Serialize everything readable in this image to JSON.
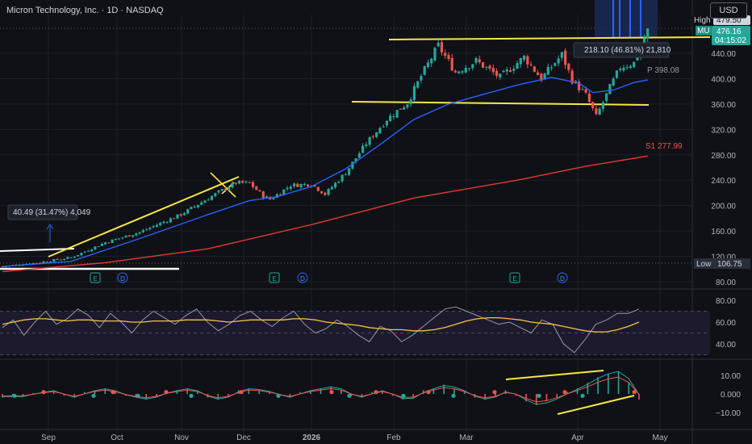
{
  "header": {
    "title": "Micron Technology, Inc. · 1D · NASDAQ",
    "currency": "USD"
  },
  "price_labels": {
    "high_tag": "High",
    "high_value": "479.50",
    "ticker": "MU",
    "last": "476.16",
    "countdown": "04:15:02",
    "low_tag": "Low",
    "low_value": "106.75",
    "ma_fast": "P 398.08",
    "ma_slow": "S1 277.99"
  },
  "measures": [
    {
      "text": "40.49 (31.47%) 4,049"
    },
    {
      "text": "218.10 (46.81%) 21,810"
    }
  ],
  "events": [
    "E",
    "D",
    "E",
    "D",
    "E",
    "D"
  ],
  "colors": {
    "up": "#26a69a",
    "down": "#ef5350",
    "ma_fast": "#2962ff",
    "ma_slow": "#e53935",
    "rsi": "#9598a1",
    "rsi_ma": "#f6c344",
    "trend": "#f9e547"
  },
  "chart_data": [
    {
      "type": "candlestick",
      "title": "Micron Technology, Inc. · 1D · NASDAQ",
      "x": [
        "Sep",
        "Oct",
        "Nov",
        "Dec",
        "2026",
        "Feb",
        "Mar",
        "Apr",
        "May"
      ],
      "ylim": [
        80,
        490
      ],
      "y_ticks": [
        "440.00",
        "400.00",
        "360.00",
        "320.00",
        "280.00",
        "240.00",
        "200.00",
        "160.00",
        "120.00",
        "80.00"
      ],
      "anchors": [
        [
          0,
          104
        ],
        [
          10,
          110
        ],
        [
          20,
          118
        ],
        [
          30,
          142
        ],
        [
          40,
          158
        ],
        [
          52,
          186
        ],
        [
          62,
          218
        ],
        [
          68,
          236
        ],
        [
          72,
          235
        ],
        [
          76,
          215
        ],
        [
          78,
          210
        ],
        [
          84,
          232
        ],
        [
          90,
          234
        ],
        [
          94,
          218
        ],
        [
          100,
          252
        ],
        [
          106,
          298
        ],
        [
          112,
          336
        ],
        [
          118,
          362
        ],
        [
          122,
          404
        ],
        [
          127,
          452
        ],
        [
          132,
          410
        ],
        [
          138,
          428
        ],
        [
          145,
          402
        ],
        [
          152,
          434
        ],
        [
          157,
          400
        ],
        [
          163,
          438
        ],
        [
          166,
          398
        ],
        [
          170,
          374
        ],
        [
          173,
          340
        ],
        [
          177,
          386
        ],
        [
          180,
          418
        ],
        [
          184,
          425
        ],
        [
          188,
          476
        ]
      ],
      "overlays": [
        {
          "name": "MA fast",
          "value": "398.08",
          "points": [
            [
              0,
              104
            ],
            [
              20,
              112
            ],
            [
              40,
              148
            ],
            [
              60,
              186
            ],
            [
              72,
              208
            ],
            [
              80,
              214
            ],
            [
              90,
              230
            ],
            [
              100,
              258
            ],
            [
              110,
              296
            ],
            [
              120,
              336
            ],
            [
              130,
              360
            ],
            [
              140,
              375
            ],
            [
              150,
              390
            ],
            [
              160,
              402
            ],
            [
              168,
              393
            ],
            [
              172,
              378
            ],
            [
              178,
              382
            ],
            [
              184,
              394
            ],
            [
              188,
              398
            ]
          ]
        },
        {
          "name": "MA slow",
          "value": "277.99",
          "points": [
            [
              0,
              96
            ],
            [
              30,
              110
            ],
            [
              60,
              132
            ],
            [
              90,
              170
            ],
            [
              120,
              212
            ],
            [
              150,
              240
            ],
            [
              170,
              262
            ],
            [
              188,
              278
            ]
          ]
        }
      ]
    },
    {
      "type": "line",
      "name": "RSI",
      "y_ticks": [
        "80.00",
        "60.00",
        "40.00"
      ],
      "ylim": [
        20,
        90
      ],
      "series": [
        {
          "name": "RSI",
          "values": [
            55,
            62,
            48,
            60,
            70,
            58,
            63,
            72,
            66,
            55,
            68,
            60,
            50,
            62,
            70,
            64,
            58,
            66,
            72,
            60,
            52,
            58,
            66,
            70,
            62,
            56,
            64,
            70,
            58,
            50,
            54,
            62,
            56,
            48,
            42,
            56,
            52,
            42,
            48,
            56,
            64,
            72,
            74,
            70,
            66,
            62,
            58,
            60,
            55,
            50,
            62,
            58,
            40,
            32,
            44,
            58,
            62,
            68,
            68,
            72
          ]
        },
        {
          "name": "RSI MA",
          "values": [
            58,
            60,
            62,
            63,
            63,
            62,
            61,
            62,
            62,
            61,
            61,
            61,
            60,
            60,
            61,
            61,
            61,
            62,
            62,
            62,
            61,
            60,
            61,
            62,
            62,
            62,
            62,
            63,
            63,
            62,
            60,
            59,
            58,
            57,
            55,
            54,
            53,
            53,
            52,
            52,
            53,
            55,
            58,
            61,
            63,
            64,
            64,
            63,
            62,
            60,
            59,
            58,
            56,
            54,
            52,
            51,
            51,
            53,
            56,
            60
          ]
        }
      ]
    },
    {
      "type": "bar",
      "name": "MACD histogram",
      "y_ticks": [
        "10.00",
        "0.000",
        "−10.00"
      ],
      "ylim": [
        -16,
        16
      ],
      "values": [
        -2,
        -1,
        -1.5,
        0.5,
        1,
        2,
        -1,
        -2,
        1,
        2,
        3,
        1,
        -1,
        -2,
        -3,
        -1,
        1,
        2,
        3,
        1,
        -2,
        -3,
        -1,
        2,
        3,
        2,
        1,
        -1,
        -2,
        1,
        2,
        3,
        4,
        2,
        -1,
        -2,
        1,
        2,
        -1,
        -3,
        -2,
        2,
        3,
        5,
        3,
        1,
        -2,
        -3,
        -1,
        2,
        -1,
        -4,
        -6,
        -4,
        -2,
        1,
        3,
        6,
        9,
        11,
        12,
        6,
        -3
      ],
      "signal_points": [
        18,
        54,
        116,
        140,
        171,
        206,
        237,
        299,
        345,
        411,
        433,
        466,
        500,
        531,
        562,
        613,
        668,
        700,
        722,
        786
      ]
    }
  ]
}
